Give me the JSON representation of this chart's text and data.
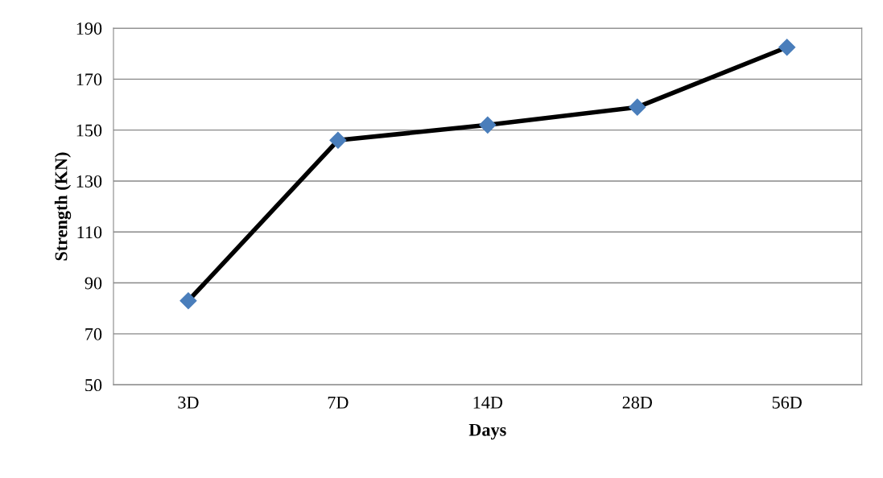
{
  "chart_data": {
    "type": "line",
    "xlabel": "Days",
    "ylabel": "Strength (KN)",
    "categories": [
      "3D",
      "7D",
      "14D",
      "28D",
      "56D"
    ],
    "series": [
      {
        "color": "#4a7ebb",
        "values": [
          83,
          146,
          152,
          159,
          182.5
        ]
      }
    ],
    "ylim": [
      50,
      190
    ],
    "yticks": [
      50,
      70,
      90,
      110,
      130,
      150,
      170,
      190
    ],
    "grid": "y",
    "marker": "diamond",
    "line_style": "solid"
  }
}
